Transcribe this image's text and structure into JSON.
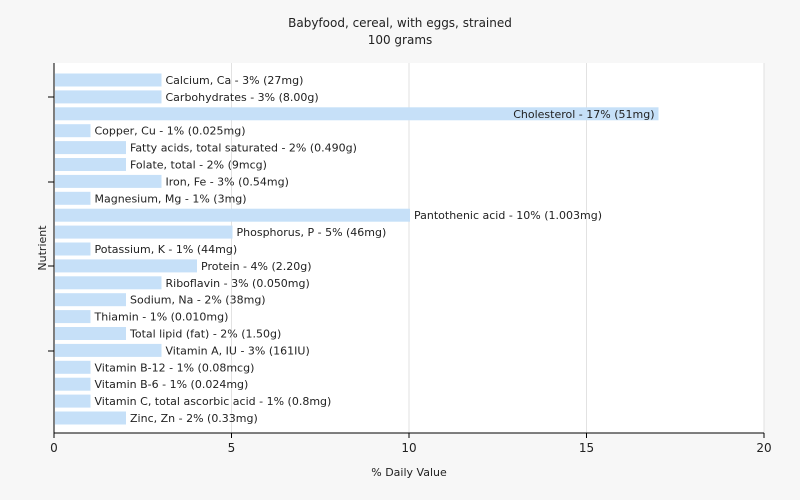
{
  "chart_data": {
    "type": "bar",
    "orientation": "horizontal",
    "title": "Babyfood, cereal, with eggs, strained",
    "subtitle": "100 grams",
    "xlabel": "% Daily Value",
    "ylabel": "Nutrient",
    "xlim": [
      0,
      20
    ],
    "xticks": [
      0,
      5,
      10,
      15,
      20
    ],
    "grid": true,
    "bar_color": "#c6e0f8",
    "categories": [
      "Calcium, Ca - 3% (27mg)",
      "Carbohydrates - 3% (8.00g)",
      "Cholesterol - 17% (51mg)",
      "Copper, Cu - 1% (0.025mg)",
      "Fatty acids, total saturated - 2% (0.490g)",
      "Folate, total - 2% (9mcg)",
      "Iron, Fe - 3% (0.54mg)",
      "Magnesium, Mg - 1% (3mg)",
      "Pantothenic acid - 10% (1.003mg)",
      "Phosphorus, P - 5% (46mg)",
      "Potassium, K - 1% (44mg)",
      "Protein - 4% (2.20g)",
      "Riboflavin - 3% (0.050mg)",
      "Sodium, Na - 2% (38mg)",
      "Thiamin - 1% (0.010mg)",
      "Total lipid (fat) - 2% (1.50g)",
      "Vitamin A, IU - 3% (161IU)",
      "Vitamin B-12 - 1% (0.08mcg)",
      "Vitamin B-6 - 1% (0.024mg)",
      "Vitamin C, total ascorbic acid - 1% (0.8mg)",
      "Zinc, Zn - 2% (0.33mg)"
    ],
    "values": [
      3,
      3,
      17,
      1,
      2,
      2,
      3,
      1,
      10,
      5,
      1,
      4,
      3,
      2,
      1,
      2,
      3,
      1,
      1,
      1,
      2
    ]
  }
}
